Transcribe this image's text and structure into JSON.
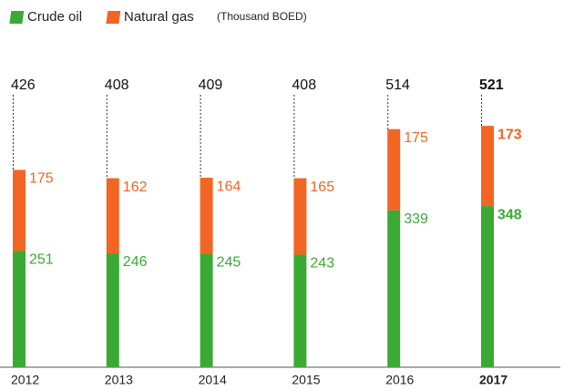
{
  "chart_data": {
    "type": "stacked_bar",
    "subtitle": "(Thousand BOED)",
    "categories": [
      "2012",
      "2013",
      "2014",
      "2015",
      "2016",
      "2017"
    ],
    "series": [
      {
        "name": "Crude oil",
        "color": "#3aaa35",
        "values": [
          251,
          246,
          245,
          243,
          339,
          348
        ]
      },
      {
        "name": "Natural gas",
        "color": "#f26522",
        "values": [
          175,
          162,
          164,
          165,
          175,
          173
        ]
      }
    ],
    "totals": [
      426,
      408,
      409,
      408,
      514,
      521
    ],
    "ylim": [
      0,
      600
    ]
  }
}
